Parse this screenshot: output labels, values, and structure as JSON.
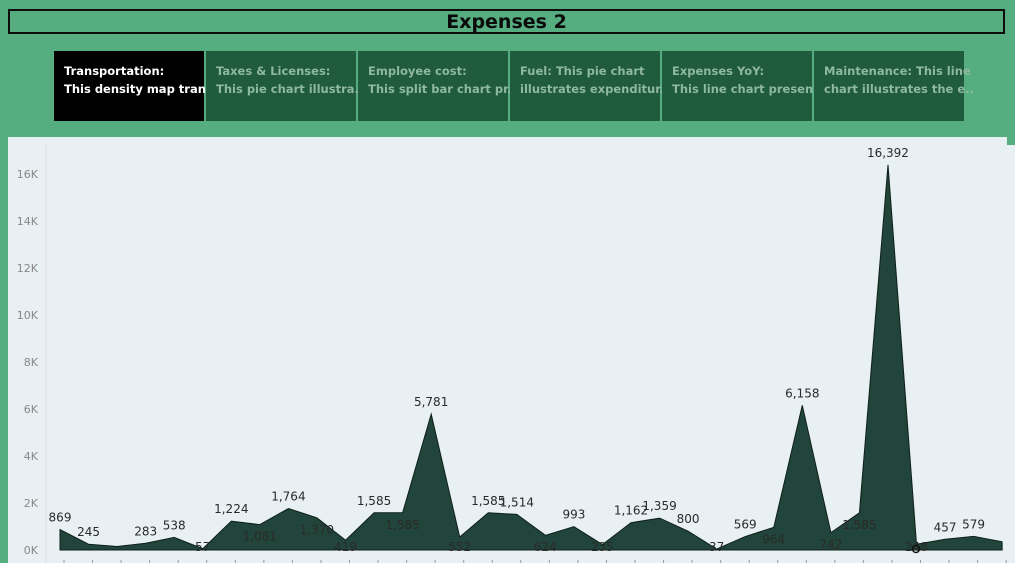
{
  "header": {
    "title": "Expenses 2"
  },
  "tabs": [
    {
      "title": "Transportation:",
      "desc": "This density map tran..",
      "active": true
    },
    {
      "title": "Taxes & Licenses:",
      "desc": "This pie chart  illustra..",
      "active": false
    },
    {
      "title": "Employee cost:",
      "desc": "This split bar chart pr..",
      "active": false
    },
    {
      "title": "Fuel: This pie chart",
      "desc": "illustrates expenditur..",
      "active": false
    },
    {
      "title": "Expenses YoY:",
      "desc": "This line chart presen..",
      "active": false
    },
    {
      "title": "Maintenance: This line",
      "desc": "chart illustrates the e..",
      "active": false
    }
  ],
  "colors": {
    "area_fill": "#21453a",
    "background": "#55ad80",
    "chart_bg": "#e8f0f3",
    "active_tab": "#000000",
    "inactive_tab": "#1f5b3c"
  },
  "chart_data": {
    "type": "area",
    "ylim": [
      0,
      17000
    ],
    "yticks": [
      {
        "value": 0,
        "label": "0K"
      },
      {
        "value": 2000,
        "label": "2K"
      },
      {
        "value": 4000,
        "label": "4K"
      },
      {
        "value": 6000,
        "label": "6K"
      },
      {
        "value": 8000,
        "label": "8K"
      },
      {
        "value": 10000,
        "label": "10K"
      },
      {
        "value": 12000,
        "label": "12K"
      },
      {
        "value": 14000,
        "label": "14K"
      },
      {
        "value": 16000,
        "label": "16K"
      }
    ],
    "values": [
      869,
      245,
      150,
      283,
      538,
      57,
      1224,
      1081,
      1764,
      1370,
      419,
      1585,
      1585,
      5781,
      552,
      1585,
      1514,
      624,
      993,
      235,
      1162,
      1359,
      800,
      37,
      569,
      964,
      6158,
      742,
      1585,
      16392,
      248,
      457,
      579,
      350
    ],
    "labels": [
      "869",
      "245",
      "",
      "283",
      "538",
      "57",
      "1,224",
      "1,081",
      "1,764",
      "1,370",
      "419",
      "1,585",
      "1,585",
      "5,781",
      "552",
      "1,585",
      "1,514",
      "624",
      "993",
      "235",
      "1,162",
      "1,359",
      "800",
      "37",
      "569",
      "964",
      "6,158",
      "742",
      "1,585",
      "16,392",
      "248",
      "457",
      "579",
      ""
    ],
    "label_pos": [
      "above",
      "above",
      "none",
      "above",
      "above",
      "below",
      "above",
      "below",
      "above",
      "below",
      "below",
      "above",
      "below",
      "above",
      "below",
      "above",
      "above",
      "below",
      "above",
      "below",
      "above",
      "above",
      "above",
      "below",
      "above",
      "below",
      "above",
      "below",
      "below",
      "above",
      "below",
      "above",
      "above",
      "none"
    ]
  }
}
